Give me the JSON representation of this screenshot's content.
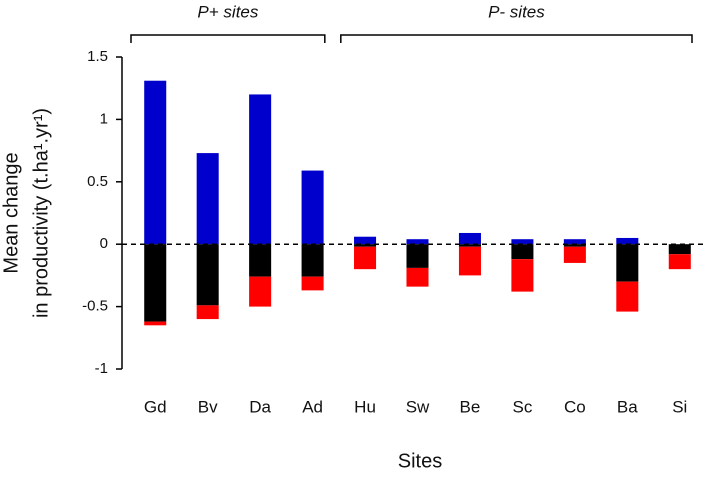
{
  "chart_data": {
    "type": "bar",
    "stacked": true,
    "annotations": [
      "P+ sites",
      "P- sites"
    ],
    "xlabel": "Sites",
    "ylabel": [
      "Mean change",
      "in productivity (t.ha¹.yr¹)"
    ],
    "categories": [
      "Gd",
      "Bv",
      "Da",
      "Ad",
      "Hu",
      "Sw",
      "Be",
      "Sc",
      "Co",
      "Ba",
      "Si"
    ],
    "series": [
      {
        "color": "#0000cc",
        "values": [
          1.31,
          0.73,
          1.2,
          0.59,
          0.06,
          0.04,
          0.09,
          0.04,
          0.04,
          0.05,
          0
        ]
      },
      {
        "color": "#000000",
        "values": [
          -0.62,
          -0.49,
          -0.26,
          -0.26,
          -0.02,
          -0.19,
          -0.02,
          -0.12,
          -0.02,
          -0.3,
          -0.08
        ]
      },
      {
        "color": "#ff0000",
        "values": [
          -0.03,
          -0.11,
          -0.24,
          -0.11,
          -0.18,
          -0.15,
          -0.23,
          -0.26,
          -0.13,
          -0.24,
          -0.12
        ]
      }
    ],
    "ylim": [
      -1,
      1.5
    ],
    "yticks": [
      -1,
      -0.5,
      0,
      0.5,
      1,
      1.5
    ],
    "zero_line": true
  }
}
